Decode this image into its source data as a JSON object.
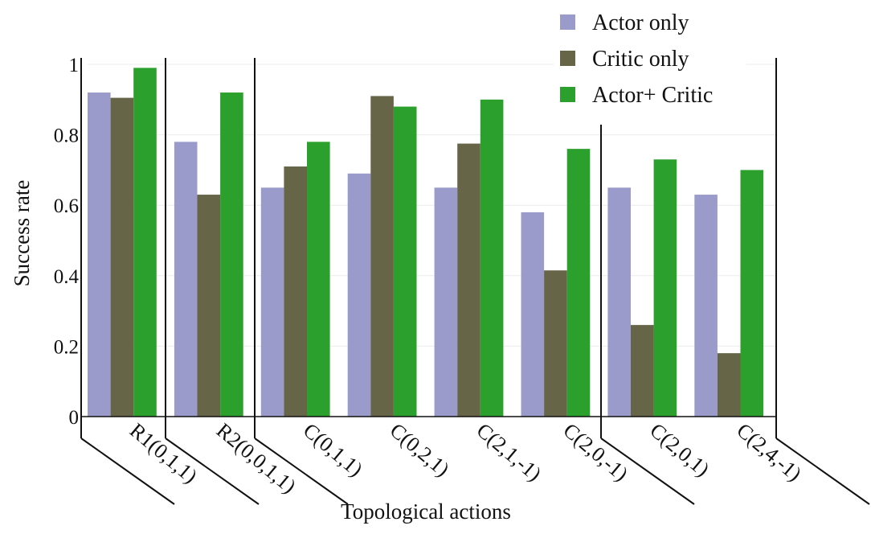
{
  "chart_data": {
    "type": "bar",
    "title": "",
    "xlabel": "Topological actions",
    "ylabel": "Success rate",
    "ylim": [
      0,
      1
    ],
    "yticks": [
      0,
      0.2,
      0.4,
      0.6,
      0.8,
      1
    ],
    "ytick_labels": [
      "0",
      "0.2",
      "0.4",
      "0.6",
      "0.8",
      "1"
    ],
    "grid": true,
    "legend_position": "top-right",
    "categories": [
      "R1(0,1,1)",
      "R2(0,0,1,1)",
      "C(0,1,1)",
      "C(0,2,1)",
      "C(2,1,-1)",
      "C(2,0,-1)",
      "C(2,0,1)",
      "C(2,4,-1)"
    ],
    "series": [
      {
        "name": "Actor only",
        "color": "#9b9bcb",
        "values": [
          0.92,
          0.78,
          0.65,
          0.69,
          0.65,
          0.58,
          0.65,
          0.63
        ]
      },
      {
        "name": "Critic only",
        "color": "#666548",
        "values": [
          0.905,
          0.63,
          0.71,
          0.91,
          0.775,
          0.415,
          0.26,
          0.18
        ]
      },
      {
        "name": "Actor+ Critic",
        "color": "#2ca02c",
        "values": [
          0.99,
          0.92,
          0.78,
          0.88,
          0.9,
          0.76,
          0.73,
          0.7
        ]
      }
    ]
  }
}
